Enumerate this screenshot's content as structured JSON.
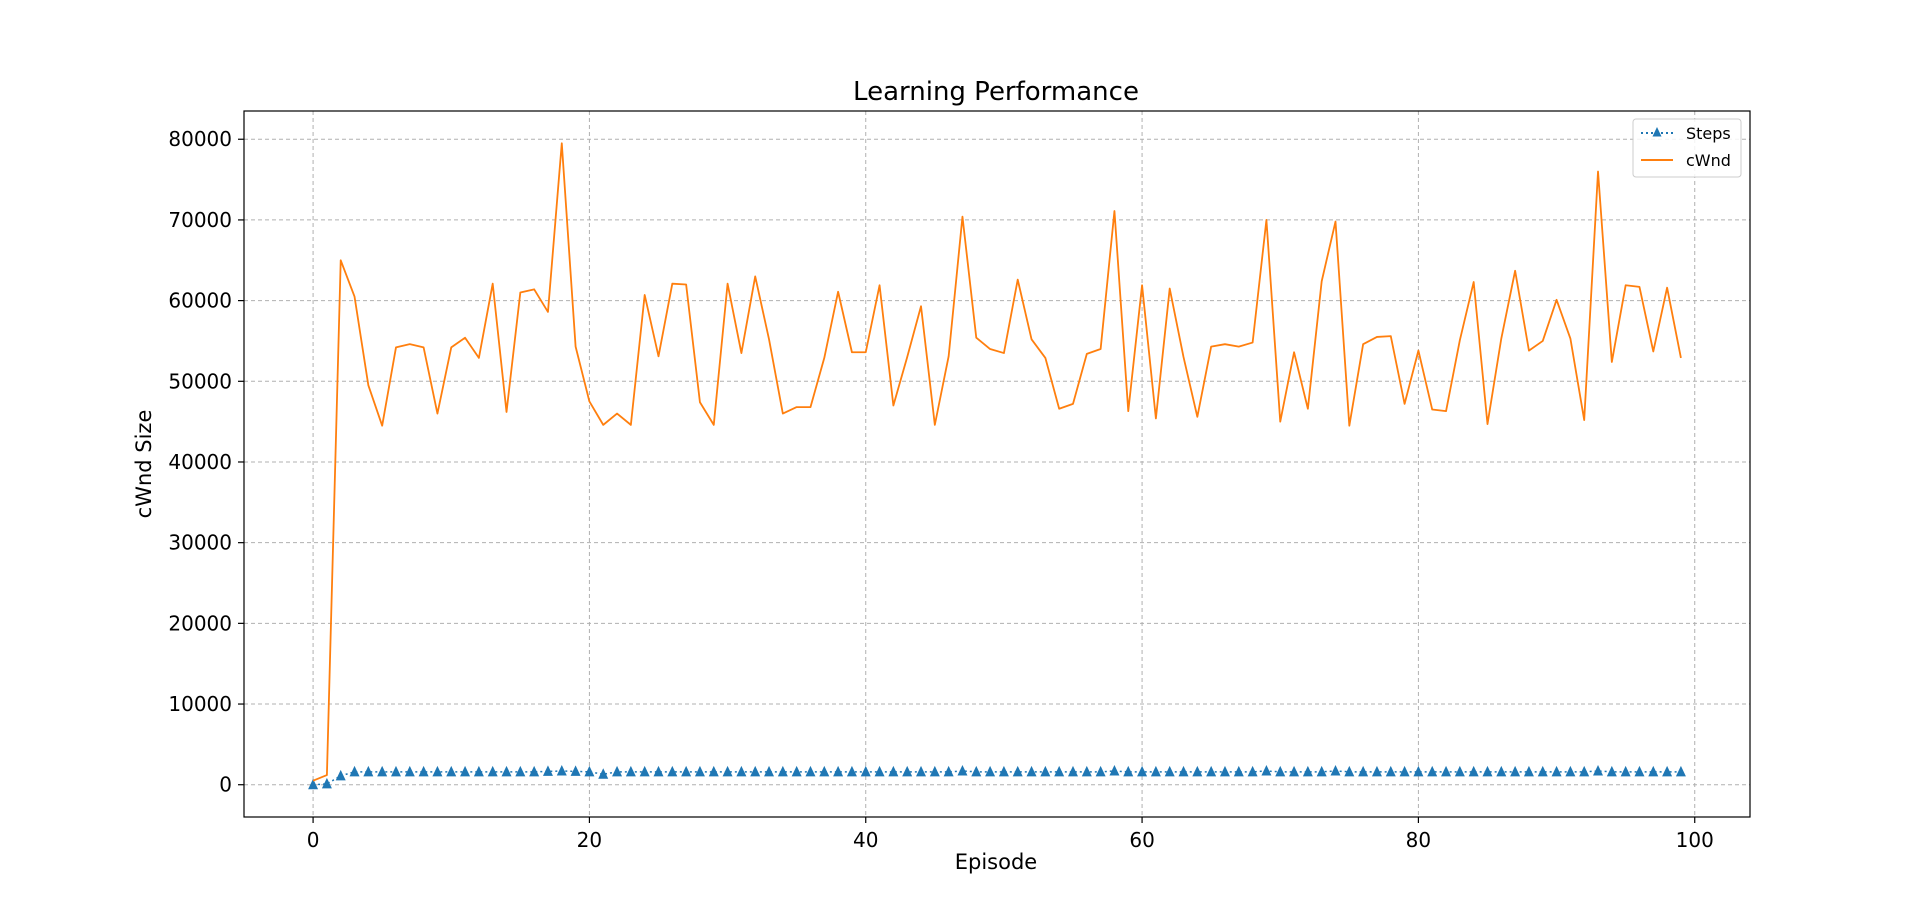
{
  "chart_data": {
    "type": "line",
    "title": "Learning Performance",
    "xlabel": "Episode",
    "ylabel": "cWnd Size",
    "xlim": [
      -5,
      104
    ],
    "ylim": [
      -4000,
      83500
    ],
    "xticks": [
      0,
      20,
      40,
      60,
      80,
      100
    ],
    "yticks": [
      0,
      10000,
      20000,
      30000,
      40000,
      50000,
      60000,
      70000,
      80000
    ],
    "grid": true,
    "legend_position": "top-right",
    "x": [
      0,
      1,
      2,
      3,
      4,
      5,
      6,
      7,
      8,
      9,
      10,
      11,
      12,
      13,
      14,
      15,
      16,
      17,
      18,
      19,
      20,
      21,
      22,
      23,
      24,
      25,
      26,
      27,
      28,
      29,
      30,
      31,
      32,
      33,
      34,
      35,
      36,
      37,
      38,
      39,
      40,
      41,
      42,
      43,
      44,
      45,
      46,
      47,
      48,
      49,
      50,
      51,
      52,
      53,
      54,
      55,
      56,
      57,
      58,
      59,
      60,
      61,
      62,
      63,
      64,
      65,
      66,
      67,
      68,
      69,
      70,
      71,
      72,
      73,
      74,
      75,
      76,
      77,
      78,
      79,
      80,
      81,
      82,
      83,
      84,
      85,
      86,
      87,
      88,
      89,
      90,
      91,
      92,
      93,
      94,
      95,
      96,
      97,
      98,
      99
    ],
    "series": [
      {
        "name": "Steps",
        "color": "#1f77b4",
        "style": "dotted-triangle",
        "values": [
          0,
          100,
          1100,
          1600,
          1600,
          1600,
          1600,
          1600,
          1600,
          1600,
          1600,
          1600,
          1600,
          1600,
          1600,
          1600,
          1600,
          1650,
          1700,
          1650,
          1600,
          1300,
          1600,
          1600,
          1600,
          1600,
          1600,
          1600,
          1600,
          1600,
          1600,
          1600,
          1600,
          1600,
          1600,
          1600,
          1600,
          1600,
          1600,
          1600,
          1600,
          1600,
          1600,
          1600,
          1600,
          1600,
          1600,
          1700,
          1600,
          1600,
          1600,
          1600,
          1600,
          1600,
          1600,
          1600,
          1600,
          1600,
          1700,
          1600,
          1600,
          1600,
          1600,
          1600,
          1600,
          1600,
          1600,
          1600,
          1600,
          1700,
          1600,
          1600,
          1600,
          1600,
          1700,
          1600,
          1600,
          1600,
          1600,
          1600,
          1600,
          1600,
          1600,
          1600,
          1600,
          1600,
          1600,
          1600,
          1600,
          1600,
          1600,
          1600,
          1600,
          1700,
          1600,
          1600,
          1600,
          1600,
          1600,
          1600
        ]
      },
      {
        "name": "cWnd",
        "color": "#ff7f0e",
        "style": "solid",
        "values": [
          500,
          1200,
          65000,
          60500,
          49500,
          44500,
          54200,
          54600,
          54200,
          46000,
          54200,
          55400,
          52900,
          62100,
          46200,
          61000,
          61400,
          58600,
          79500,
          54300,
          47500,
          44600,
          46000,
          44600,
          60700,
          53100,
          62100,
          62000,
          47400,
          44600,
          62100,
          53500,
          63000,
          55200,
          46000,
          46800,
          46800,
          52900,
          61100,
          53600,
          53600,
          61900,
          47000,
          53000,
          59300,
          44600,
          53100,
          70400,
          55400,
          54000,
          53500,
          62600,
          55200,
          52900,
          46600,
          47200,
          53400,
          54000,
          71100,
          46300,
          61900,
          45400,
          61500,
          53000,
          45600,
          54300,
          54600,
          54300,
          54800,
          70000,
          45000,
          53600,
          46600,
          62400,
          69800,
          44500,
          54600,
          55500,
          55600,
          47200,
          53800,
          46500,
          46300,
          55100,
          62300,
          44700,
          55300,
          63700,
          53800,
          55000,
          60100,
          55300,
          45200,
          76000,
          52400,
          61900,
          61700,
          53700,
          61600,
          52900
        ]
      }
    ]
  }
}
